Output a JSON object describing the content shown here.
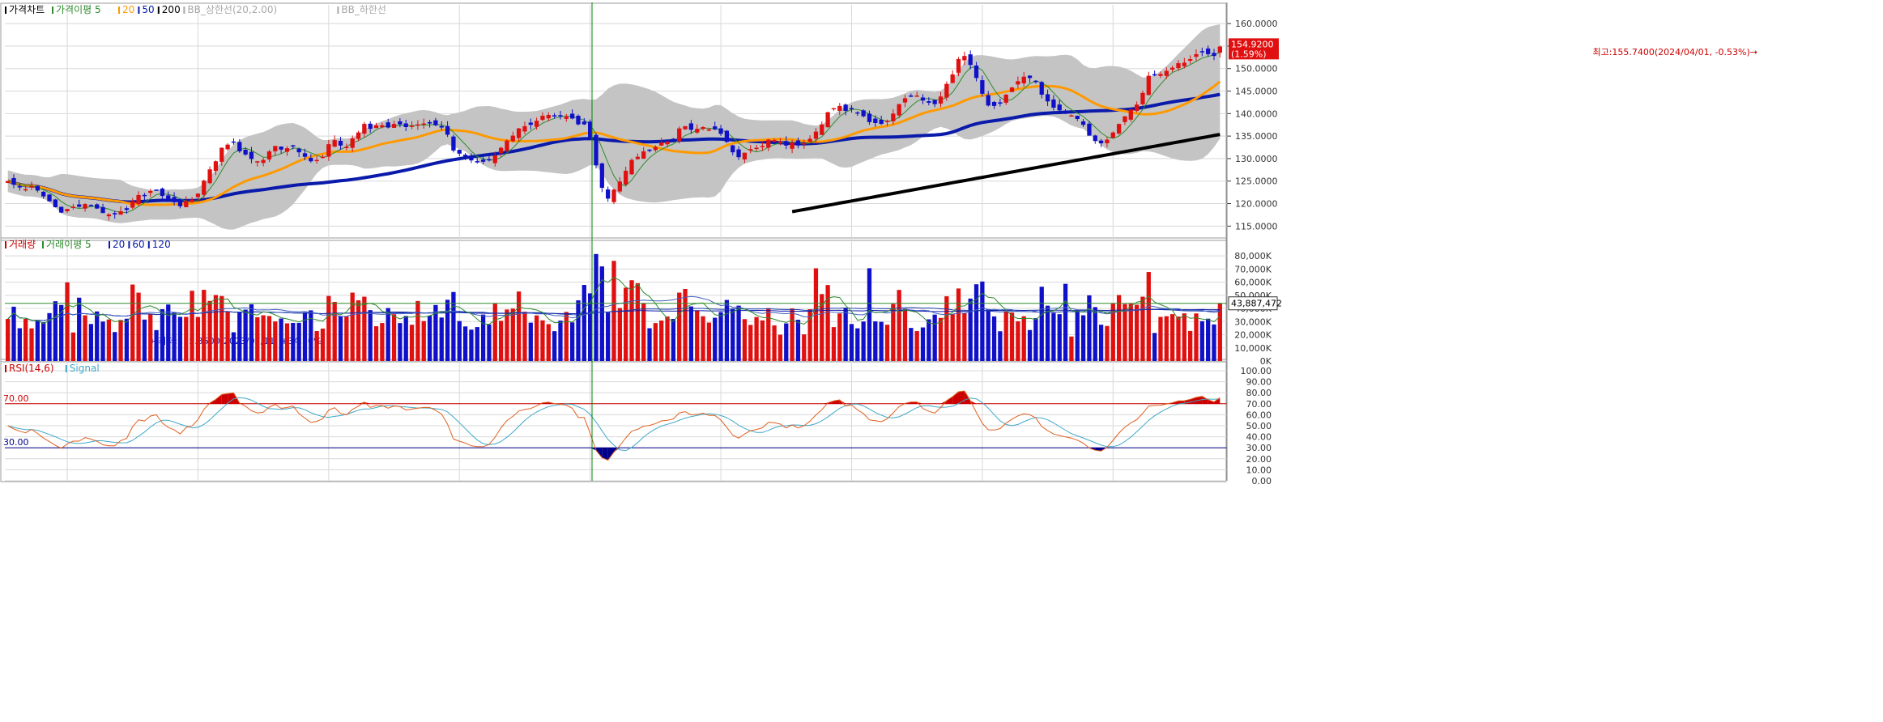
{
  "colors": {
    "up": "#e01010",
    "down": "#1010c8",
    "ma5": "#2e8b2e",
    "ma20": "#ff9900",
    "ma50": "#0a1aaa",
    "ma200": "#000000",
    "bb": "#c4c4c4",
    "grid": "#d8d8d8",
    "rsi": "#e06020",
    "signal": "#40a8c8",
    "rsi_over": "#cc0000",
    "rsi_under": "#00008b",
    "cursor": "#008000"
  },
  "price_panel": {
    "legend": [
      {
        "text": "가격차트",
        "color": "#000000"
      },
      {
        "text": "가격이평 5",
        "color": "#2e8b2e"
      },
      {
        "text": "20",
        "color": "#ff9900"
      },
      {
        "text": "50",
        "color": "#0a1aaa"
      },
      {
        "text": "200",
        "color": "#000000"
      },
      {
        "text": "BB_상한선(20,2.00)",
        "color": "#a8a8a8"
      },
      {
        "text": "BB_하한선",
        "color": "#a8a8a8"
      }
    ],
    "axis_ticks": [
      "160.0000",
      "155.0000",
      "150.0000",
      "145.0000",
      "140.0000",
      "135.0000",
      "130.0000",
      "125.0000",
      "120.0000",
      "115.0000"
    ],
    "current_value": "154.9200",
    "current_change": "(1.59%)",
    "high_annotation": "최고:155.7400(2024/04/01, -0.53%)→",
    "low_annotation": "←최저:115.3500(2023/07/11, +34.30%)"
  },
  "volume_panel": {
    "legend": [
      {
        "text": "거래량",
        "color": "#cc0000"
      },
      {
        "text": "거래이평 5",
        "color": "#2e8b2e"
      },
      {
        "text": "20",
        "color": "#0a1aaa"
      },
      {
        "text": "60",
        "color": "#0a1aaa"
      },
      {
        "text": "120",
        "color": "#0a1aaa"
      }
    ],
    "axis_ticks": [
      "80,000K",
      "70,000K",
      "60,000K",
      "50,000K",
      "40,000K",
      "30,000K",
      "20,000K",
      "10,000K",
      "0K"
    ],
    "current_value": "43,887,472"
  },
  "rsi_panel": {
    "legend": [
      {
        "text": "RSI(14,6)",
        "color": "#cc0000"
      },
      {
        "text": "Signal",
        "color": "#40a8c8"
      }
    ],
    "axis_ticks": [
      "100.00",
      "90.00",
      "80.00",
      "70.00",
      "60.00",
      "50.00",
      "40.00",
      "30.00",
      "20.00",
      "10.00",
      "0.00"
    ],
    "overbought_label": "70.00",
    "oversold_label": "30.00"
  },
  "chart_data": {
    "type": "candlestick",
    "price_range": [
      112,
      162
    ],
    "volume_range_k": [
      0,
      85000
    ],
    "rsi_range": [
      0,
      100
    ],
    "rsi_levels": [
      70,
      30
    ],
    "high": {
      "value": 155.74,
      "date": "2024/04/01",
      "change_pct": -0.53
    },
    "low": {
      "value": 115.35,
      "date": "2023/07/11",
      "change_pct": 34.3
    },
    "last_close": 154.92,
    "last_change_pct": 1.59,
    "last_volume": 43887472,
    "series": [
      {
        "name": "가격차트",
        "closes": [
          125.0,
          124.2,
          123.6,
          123.2,
          123.9,
          122.9,
          121.6,
          120.5,
          119.2,
          118.0,
          118.8,
          119.3,
          119.3,
          119.9,
          119.5,
          118.9,
          117.9,
          117.6,
          117.6,
          118.3,
          118.6,
          120.5,
          121.9,
          121.7,
          122.8,
          123.1,
          121.7,
          120.8,
          120.3,
          119.4,
          120.6,
          120.9,
          122.2,
          125.1,
          127.6,
          129.4,
          132.4,
          133.1,
          133.6,
          131.6,
          130.9,
          129.9,
          129.4,
          129.7,
          131.6,
          132.8,
          132.0,
          132.3,
          132.9,
          131.4,
          130.4,
          129.4,
          129.7,
          130.4,
          133.2,
          134.1,
          132.9,
          132.6,
          134.5,
          135.8,
          137.7,
          136.6,
          137.4,
          137.4,
          136.9,
          137.7,
          137.6,
          137.0,
          137.3,
          137.6,
          137.8,
          137.8,
          137.4,
          136.9,
          135.3,
          131.8,
          131.1,
          130.5,
          129.6,
          129.3,
          129.3,
          129.6,
          130.7,
          132.4,
          134.0,
          135.1,
          136.7,
          137.2,
          137.5,
          138.4,
          139.5,
          139.7,
          139.5,
          139.4,
          139.3,
          138.9,
          137.6,
          137.6,
          134.6,
          128.5,
          123.5,
          121.1,
          123.1,
          124.9,
          127.3,
          129.7,
          130.4,
          131.6,
          131.9,
          132.6,
          133.6,
          133.8,
          134.3,
          136.7,
          137.2,
          136.4,
          136.6,
          137.0,
          136.5,
          136.5,
          135.5,
          133.7,
          131.4,
          130.3,
          131.3,
          132.1,
          132.4,
          132.8,
          134.2,
          134.1,
          133.8,
          132.9,
          133.6,
          132.9,
          133.4,
          134.4,
          136.0,
          137.6,
          140.3,
          141.2,
          141.7,
          140.6,
          141.0,
          140.1,
          139.4,
          138.1,
          137.9,
          137.7,
          138.4,
          140.0,
          142.1,
          143.4,
          144.0,
          144.0,
          142.9,
          142.4,
          142.1,
          143.8,
          146.6,
          148.7,
          152.1,
          152.8,
          150.8,
          147.9,
          144.4,
          141.8,
          141.7,
          142.2,
          144.2,
          145.8,
          147.2,
          148.2,
          147.9,
          147.0,
          144.2,
          142.7,
          141.3,
          140.7,
          140.1,
          139.6,
          138.8,
          137.5,
          135.1,
          133.9,
          133.4,
          134.2,
          135.8,
          137.7,
          139.4,
          140.9,
          142.0,
          144.6,
          148.4,
          148.7,
          148.8,
          149.5,
          150.2,
          151.2,
          151.3,
          152.1,
          153.2,
          153.8,
          153.2,
          152.8,
          154.9
        ]
      }
    ]
  }
}
